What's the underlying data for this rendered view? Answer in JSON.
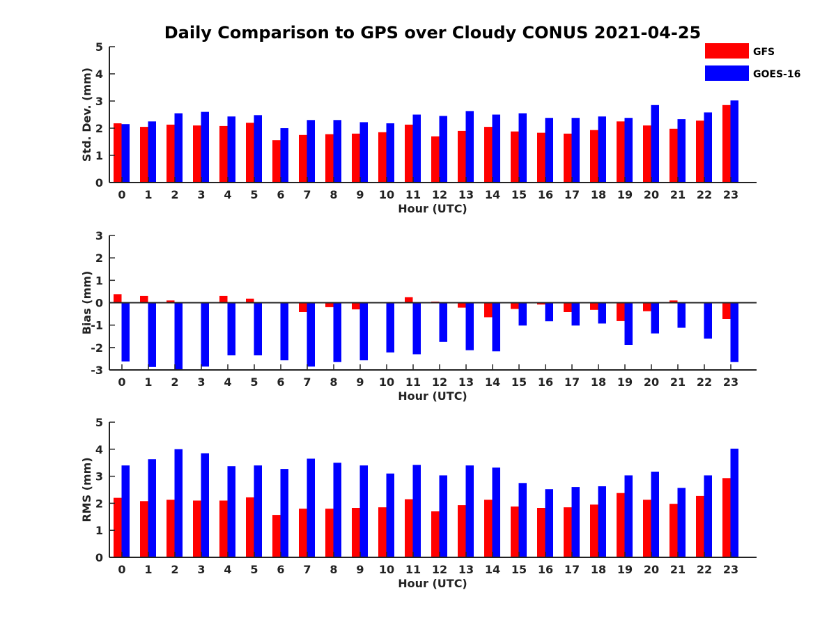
{
  "title": "Daily Comparison to GPS over Cloudy CONUS 2021-04-25",
  "colors": {
    "GFS": "#ff0000",
    "GOES-16": "#0000ff"
  },
  "legend": {
    "placement": "top-right",
    "entries": [
      "GFS",
      "GOES-16"
    ]
  },
  "chart_data": [
    {
      "type": "bar",
      "categories": [
        "0",
        "1",
        "2",
        "3",
        "4",
        "5",
        "6",
        "7",
        "8",
        "9",
        "10",
        "11",
        "12",
        "13",
        "14",
        "15",
        "16",
        "17",
        "18",
        "19",
        "20",
        "21",
        "22",
        "23"
      ],
      "xlabel": "Hour (UTC)",
      "ylabel": "Std. Dev. (mm)",
      "ylim": [
        0,
        5
      ],
      "yticks": [
        "0",
        "1",
        "2",
        "3",
        "4",
        "5"
      ],
      "grid": false,
      "series": [
        {
          "name": "GFS",
          "values": [
            2.18,
            2.05,
            2.13,
            2.1,
            2.08,
            2.2,
            1.56,
            1.75,
            1.78,
            1.8,
            1.85,
            2.13,
            1.7,
            1.9,
            2.05,
            1.88,
            1.83,
            1.8,
            1.93,
            2.25,
            2.1,
            1.98,
            2.28,
            2.85
          ]
        },
        {
          "name": "GOES-16",
          "values": [
            2.15,
            2.25,
            2.55,
            2.6,
            2.43,
            2.48,
            2.0,
            2.3,
            2.3,
            2.22,
            2.18,
            2.5,
            2.45,
            2.63,
            2.5,
            2.55,
            2.38,
            2.38,
            2.43,
            2.38,
            2.85,
            2.33,
            2.58,
            3.02
          ]
        }
      ]
    },
    {
      "type": "bar",
      "categories": [
        "0",
        "1",
        "2",
        "3",
        "4",
        "5",
        "6",
        "7",
        "8",
        "9",
        "10",
        "11",
        "12",
        "13",
        "14",
        "15",
        "16",
        "17",
        "18",
        "19",
        "20",
        "21",
        "22",
        "23"
      ],
      "xlabel": "Hour (UTC)",
      "ylabel": "Bias (mm)",
      "ylim": [
        -3,
        3
      ],
      "yticks": [
        "-3",
        "-2",
        "-1",
        "0",
        "1",
        "2",
        "3"
      ],
      "zero_line": true,
      "grid": false,
      "series": [
        {
          "name": "GFS",
          "values": [
            0.38,
            0.3,
            0.1,
            0.02,
            0.3,
            0.18,
            -0.02,
            -0.42,
            -0.2,
            -0.3,
            -0.03,
            0.25,
            0.05,
            -0.22,
            -0.65,
            -0.28,
            -0.08,
            -0.42,
            -0.32,
            -0.82,
            -0.38,
            0.1,
            -0.03,
            -0.73
          ]
        },
        {
          "name": "GOES-16",
          "values": [
            -2.62,
            -2.87,
            -3.0,
            -2.85,
            -2.35,
            -2.35,
            -2.57,
            -2.85,
            -2.65,
            -2.57,
            -2.22,
            -2.3,
            -1.75,
            -2.12,
            -2.17,
            -1.02,
            -0.83,
            -1.02,
            -0.93,
            -1.88,
            -1.37,
            -1.12,
            -1.6,
            -2.65
          ]
        }
      ]
    },
    {
      "type": "bar",
      "categories": [
        "0",
        "1",
        "2",
        "3",
        "4",
        "5",
        "6",
        "7",
        "8",
        "9",
        "10",
        "11",
        "12",
        "13",
        "14",
        "15",
        "16",
        "17",
        "18",
        "19",
        "20",
        "21",
        "22",
        "23"
      ],
      "xlabel": "Hour (UTC)",
      "ylabel": "RMS (mm)",
      "ylim": [
        0,
        5
      ],
      "yticks": [
        "0",
        "1",
        "2",
        "3",
        "4",
        "5"
      ],
      "grid": false,
      "series": [
        {
          "name": "GFS",
          "values": [
            2.2,
            2.08,
            2.13,
            2.1,
            2.1,
            2.22,
            1.57,
            1.8,
            1.8,
            1.83,
            1.85,
            2.15,
            1.7,
            1.93,
            2.13,
            1.88,
            1.83,
            1.85,
            1.95,
            2.38,
            2.13,
            1.98,
            2.27,
            2.93
          ]
        },
        {
          "name": "GOES-16",
          "values": [
            3.4,
            3.63,
            4.0,
            3.85,
            3.37,
            3.4,
            3.27,
            3.65,
            3.5,
            3.4,
            3.1,
            3.42,
            3.03,
            3.4,
            3.32,
            2.75,
            2.52,
            2.6,
            2.63,
            3.03,
            3.17,
            2.57,
            3.03,
            4.02
          ]
        }
      ]
    }
  ]
}
